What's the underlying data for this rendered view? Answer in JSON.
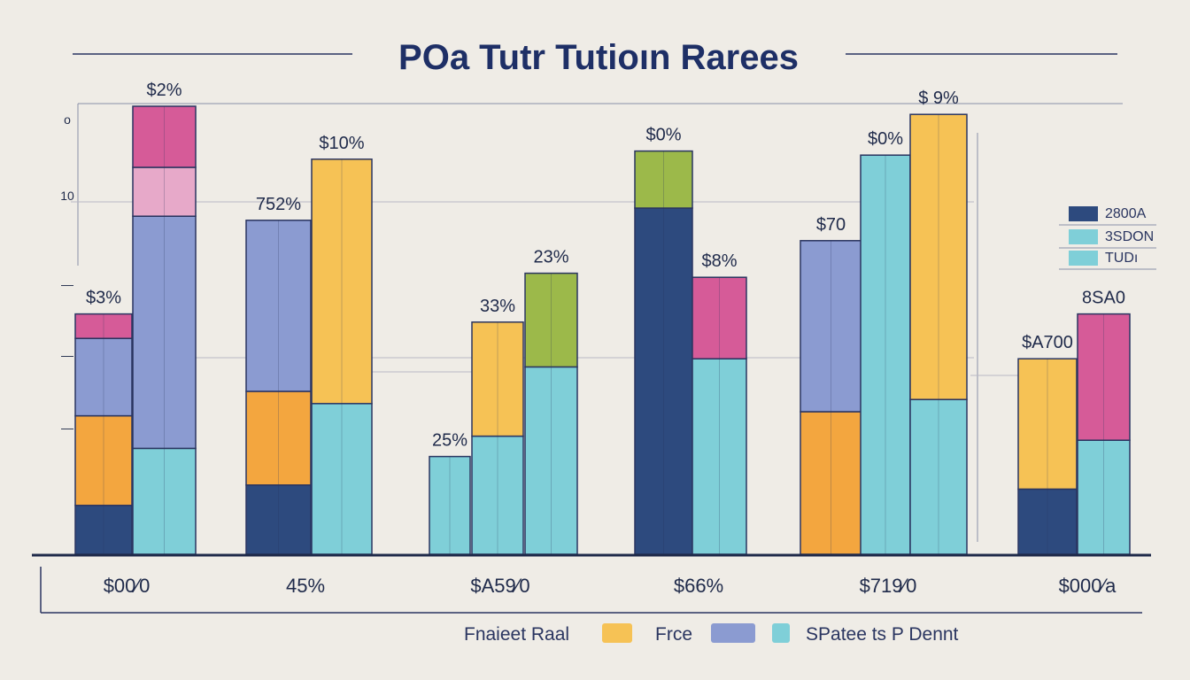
{
  "colors": {
    "navy": "#2d4a7e",
    "blue": "#8b9bd1",
    "teal": "#7fcfd8",
    "yellow": "#f6c255",
    "orange": "#f3a63f",
    "pink": "#d65b98",
    "lightpink": "#e7a9c9",
    "green": "#9cb94a",
    "title": "#1e2f66"
  },
  "chart_data": {
    "type": "bar",
    "title": "POa Tutr Tutioın Rarees",
    "categories": [
      "$00⁄0",
      "45%",
      "$A59⁄0",
      "$66%",
      "$719⁄0",
      "$000⁄a"
    ],
    "y_ticks": [
      "o",
      "10",
      "—",
      "—",
      "—"
    ],
    "legend_right": [
      {
        "label": "2800A",
        "color": "navy"
      },
      {
        "label": "3SDON",
        "color": "teal"
      },
      {
        "label": "TUDı",
        "color": "teal"
      }
    ],
    "legend_bottom": [
      {
        "label": "Fnaieet Raal",
        "color": "yellow"
      },
      {
        "label": "Frce",
        "color": "blue"
      },
      {
        "label": "SPatee ts P Dennt",
        "color": "teal"
      }
    ],
    "bars": [
      {
        "category": 0,
        "label": "$3%",
        "segments": [
          {
            "color": "navy",
            "value": 12
          },
          {
            "color": "orange",
            "value": 22
          },
          {
            "color": "blue",
            "value": 19
          },
          {
            "color": "pink",
            "value": 6
          }
        ]
      },
      {
        "category": 0,
        "label": "$2%",
        "segments": [
          {
            "color": "teal",
            "value": 26
          },
          {
            "color": "blue",
            "value": 57
          },
          {
            "color": "lightpink",
            "value": 12
          },
          {
            "color": "pink",
            "value": 15
          }
        ]
      },
      {
        "category": 1,
        "label": "752%",
        "segments": [
          {
            "color": "navy",
            "value": 17
          },
          {
            "color": "orange",
            "value": 23
          },
          {
            "color": "blue",
            "value": 42
          }
        ]
      },
      {
        "category": 1,
        "label": "$10%",
        "segments": [
          {
            "color": "teal",
            "value": 37
          },
          {
            "color": "yellow",
            "value": 60
          }
        ]
      },
      {
        "category": 2,
        "label": "25%",
        "segments": [
          {
            "color": "teal",
            "value": 24
          }
        ]
      },
      {
        "category": 2,
        "label": "33%",
        "segments": [
          {
            "color": "teal",
            "value": 29
          },
          {
            "color": "yellow",
            "value": 28
          }
        ]
      },
      {
        "category": 2,
        "label": "23%",
        "segments": [
          {
            "color": "teal",
            "value": 46
          },
          {
            "color": "green",
            "value": 23
          }
        ]
      },
      {
        "category": 3,
        "label": "$0%",
        "segments": [
          {
            "color": "navy",
            "value": 85
          },
          {
            "color": "green",
            "value": 14
          }
        ]
      },
      {
        "category": 3,
        "label": "$8%",
        "segments": [
          {
            "color": "teal",
            "value": 48
          },
          {
            "color": "pink",
            "value": 20
          }
        ]
      },
      {
        "category": 4,
        "label": "$70",
        "segments": [
          {
            "color": "orange",
            "value": 35
          },
          {
            "color": "blue",
            "value": 42
          }
        ]
      },
      {
        "category": 4,
        "label": "$0%",
        "segments": [
          {
            "color": "teal",
            "value": 98
          }
        ]
      },
      {
        "category": 4,
        "label": "$ 9%",
        "segments": [
          {
            "color": "teal",
            "value": 38
          },
          {
            "color": "yellow",
            "value": 70
          }
        ]
      },
      {
        "category": 5,
        "label": "$A700",
        "segments": [
          {
            "color": "navy",
            "value": 16
          },
          {
            "color": "yellow",
            "value": 32
          }
        ]
      },
      {
        "category": 5,
        "label": "8SA0",
        "segments": [
          {
            "color": "teal",
            "value": 28
          },
          {
            "color": "pink",
            "value": 31
          }
        ]
      }
    ]
  }
}
